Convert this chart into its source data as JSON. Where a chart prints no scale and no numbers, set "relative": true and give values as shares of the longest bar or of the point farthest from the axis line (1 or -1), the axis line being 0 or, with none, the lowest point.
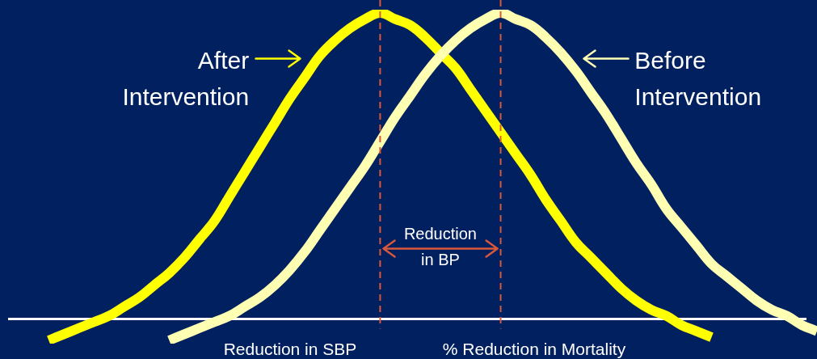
{
  "chart_data": {
    "type": "line",
    "relative": true,
    "categories": [
      null,
      null,
      null,
      null,
      null,
      null,
      null,
      null,
      null,
      null,
      null,
      null,
      null,
      null,
      null,
      null,
      null,
      null,
      null,
      null,
      null,
      null,
      null,
      null,
      null,
      null,
      null,
      null,
      null,
      null,
      null,
      null,
      null,
      null,
      null,
      null,
      null,
      null,
      null,
      null,
      null,
      null,
      null,
      null,
      null,
      null,
      null,
      null,
      null,
      null,
      null,
      null,
      null,
      null
    ],
    "series": [
      {
        "name": "After Intervention",
        "color": "#ffff00",
        "values": [
          null,
          null,
          -0.07,
          -0.05,
          -0.03,
          -0.01,
          0.01,
          0.04,
          0.07,
          0.11,
          0.15,
          0.2,
          0.26,
          0.32,
          0.4,
          0.48,
          0.56,
          0.64,
          0.72,
          0.79,
          0.86,
          0.91,
          0.95,
          0.98,
          1,
          0.98,
          0.96,
          0.92,
          0.87,
          0.82,
          0.75,
          0.68,
          0.61,
          0.54,
          0.47,
          0.39,
          0.32,
          0.25,
          0.2,
          0.15,
          0.1,
          0.06,
          0.03,
          0.01,
          -0.02,
          -0.04,
          -0.06,
          null,
          null,
          null,
          null,
          null,
          null,
          null
        ]
      },
      {
        "name": "Before Intervention",
        "color": "#ffffb3",
        "values": [
          null,
          null,
          null,
          null,
          null,
          null,
          null,
          null,
          null,
          null,
          -0.07,
          -0.05,
          -0.03,
          -0.01,
          0.01,
          0.04,
          0.07,
          0.11,
          0.16,
          0.22,
          0.29,
          0.36,
          0.43,
          0.5,
          0.58,
          0.66,
          0.73,
          0.8,
          0.86,
          0.91,
          0.95,
          0.98,
          1,
          0.98,
          0.96,
          0.92,
          0.87,
          0.81,
          0.74,
          0.67,
          0.59,
          0.51,
          0.44,
          0.36,
          0.3,
          0.24,
          0.18,
          0.14,
          0.1,
          0.06,
          0.03,
          0.01,
          -0.02,
          -0.04
        ]
      }
    ],
    "annotations": [
      "Reduction in BP",
      "Reduction in SBP",
      "% Reduction in Mortality"
    ]
  }
}
